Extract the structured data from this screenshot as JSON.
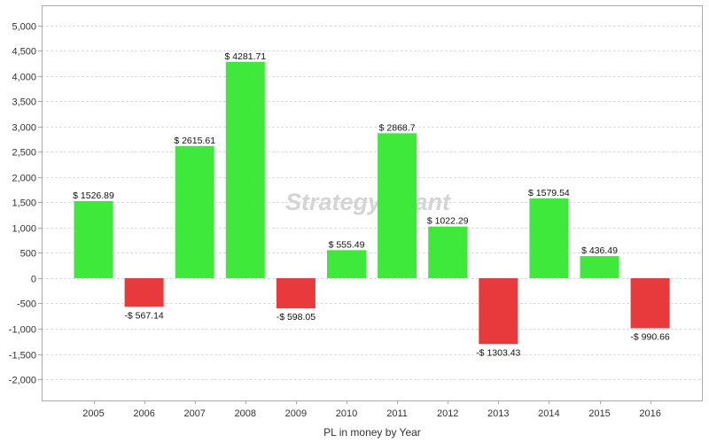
{
  "chart_data": {
    "type": "bar",
    "title": "",
    "xlabel": "PL in money by Year",
    "ylabel": "",
    "watermark": "StrategyQuant",
    "categories": [
      "2005",
      "2006",
      "2007",
      "2008",
      "2009",
      "2010",
      "2011",
      "2012",
      "2013",
      "2014",
      "2015",
      "2016"
    ],
    "values": [
      1526.89,
      -567.14,
      2615.61,
      4281.71,
      -598.05,
      555.49,
      2868.7,
      1022.29,
      -1303.43,
      1579.54,
      436.49,
      -990.66
    ],
    "data_labels": [
      "$ 1526.89",
      "-$ 567.14",
      "$ 2615.61",
      "$ 4281.71",
      "-$ 598.05",
      "$ 555.49",
      "$ 2868.7",
      "$ 1022.29",
      "-$ 1303.43",
      "$ 1579.54",
      "$ 436.49",
      "-$ 990.66"
    ],
    "ylim": [
      -2420,
      5400
    ],
    "yticks": [
      5000,
      4500,
      4000,
      3500,
      3000,
      2500,
      2000,
      1500,
      1000,
      500,
      0,
      -500,
      -1000,
      -1500,
      -2000
    ],
    "ytick_labels": [
      "5,000",
      "4,500",
      "4,000",
      "3,500",
      "3,000",
      "2,500",
      "2,000",
      "1,500",
      "1,000",
      "500",
      "0",
      "-500",
      "-1,000",
      "-1,500",
      "-2,000"
    ],
    "grid": true,
    "colors": {
      "positive": "#3fe93c",
      "negative": "#e8393d",
      "grid": "#dddddd",
      "frame": "#aaaaaa"
    }
  }
}
